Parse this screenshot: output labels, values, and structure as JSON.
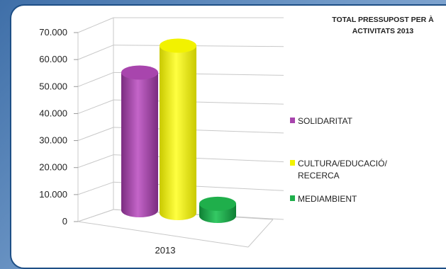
{
  "chart_data": {
    "type": "bar",
    "title": "TOTAL PRESSUPOST PER À\nACTIVITATS 2013",
    "title_lines": [
      "TOTAL  PRESSUPOST PER À",
      "ACTIVITATS 2013"
    ],
    "categories": [
      "2013"
    ],
    "series": [
      {
        "name": "SOLIDARITAT",
        "values": [
          51000
        ],
        "color": "#a845ad"
      },
      {
        "name": "CULTURA/EDUCACIÓ/\nRECERCA",
        "name_lines": [
          "CULTURA/EDUCACIÓ/",
          "RECERCA"
        ],
        "values": [
          62000
        ],
        "color": "#f2f200"
      },
      {
        "name": "MEDIAMBIENT",
        "values": [
          4500
        ],
        "color": "#1faf4b"
      }
    ],
    "y_ticks": [
      "0",
      "10.000",
      "20.000",
      "30.000",
      "40.000",
      "50.000",
      "60.000",
      "70.000"
    ],
    "ylim": [
      0,
      70000
    ],
    "grid": true,
    "legend_position": "right",
    "style": "3d-cylinder"
  }
}
